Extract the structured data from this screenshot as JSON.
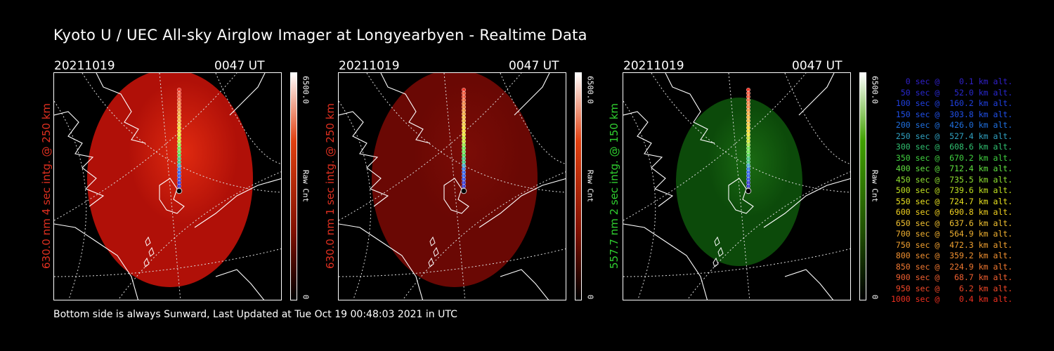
{
  "title": "Kyoto U / UEC All-sky Airglow Imager at Longyearbyen - Realtime Data",
  "footer": "Bottom side is always Sunward, Last Updated at Tue Oct 19 00:48:03 2021 in UTC",
  "panels": [
    {
      "date": "20211019",
      "time": "0047 UT",
      "side_label": "630.0 nm 4 sec intg. @ 250 km",
      "label_color": "#e03020",
      "cbar_max": "6500.0",
      "cbar_min": "0",
      "cbar_label": "Raw Cnt",
      "glow_intensity": 0.85,
      "glow_color": "#b01008"
    },
    {
      "date": "20211019",
      "time": "0047 UT",
      "side_label": "630.0 nm 1 sec intg. @ 250 km",
      "label_color": "#e03020",
      "cbar_max": "6500.0",
      "cbar_min": "0",
      "cbar_label": "Raw Cnt",
      "glow_intensity": 0.25,
      "glow_color": "#6a0804"
    },
    {
      "date": "20211019",
      "time": "0047 UT",
      "side_label": "557.7 nm 2 sec intg. @ 150 km",
      "label_color": "#30d030",
      "cbar_max": "6500.0",
      "cbar_min": "0",
      "cbar_label": "Raw Cnt",
      "glow_intensity": 0.35,
      "glow_color": "#0c4a0a"
    }
  ],
  "legend": [
    {
      "text": "   0 sec @    0.1 km alt.",
      "color": "#3020c8"
    },
    {
      "text": "  50 sec @   52.0 km alt.",
      "color": "#2828d0"
    },
    {
      "text": " 100 sec @  160.2 km alt.",
      "color": "#2040e0"
    },
    {
      "text": " 150 sec @  303.8 km alt.",
      "color": "#2050e8"
    },
    {
      "text": " 200 sec @  426.0 km alt.",
      "color": "#2070e0"
    },
    {
      "text": " 250 sec @  527.4 km alt.",
      "color": "#30a0c0"
    },
    {
      "text": " 300 sec @  608.6 km alt.",
      "color": "#30c070"
    },
    {
      "text": " 350 sec @  670.2 km alt.",
      "color": "#40d040"
    },
    {
      "text": " 400 sec @  712.4 km alt.",
      "color": "#60e040"
    },
    {
      "text": " 450 sec @  735.5 km alt.",
      "color": "#90e030"
    },
    {
      "text": " 500 sec @  739.6 km alt.",
      "color": "#c0e020"
    },
    {
      "text": " 550 sec @  724.7 km alt.",
      "color": "#e8e020"
    },
    {
      "text": " 600 sec @  690.8 km alt.",
      "color": "#f0d020"
    },
    {
      "text": " 650 sec @  637.6 km alt.",
      "color": "#f0c030"
    },
    {
      "text": " 700 sec @  564.9 km alt.",
      "color": "#f0b030"
    },
    {
      "text": " 750 sec @  472.3 km alt.",
      "color": "#f0a030"
    },
    {
      "text": " 800 sec @  359.2 km alt.",
      "color": "#f09030"
    },
    {
      "text": " 850 sec @  224.9 km alt.",
      "color": "#f07830"
    },
    {
      "text": " 900 sec @   68.7 km alt.",
      "color": "#f06030"
    },
    {
      "text": " 950 sec @    6.2 km alt.",
      "color": "#f04828"
    },
    {
      "text": "1000 sec @    0.4 km alt.",
      "color": "#f03020"
    }
  ]
}
